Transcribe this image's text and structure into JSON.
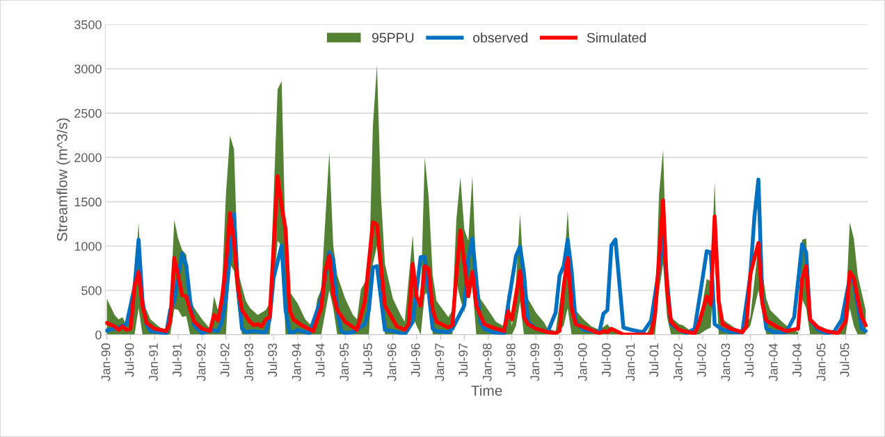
{
  "chart_data": {
    "type": "line",
    "xlabel": "Time",
    "ylabel": "Streamflow (m^3/s)",
    "ylim": [
      0,
      3500
    ],
    "yticks": [
      0,
      500,
      1000,
      1500,
      2000,
      2500,
      3000,
      3500
    ],
    "xlim": [
      "1989-12-20",
      "2005-12-20"
    ],
    "xticks": [
      {
        "value": "1990-01",
        "label": "Jan-90"
      },
      {
        "value": "1990-07",
        "label": "Jul-90"
      },
      {
        "value": "1991-01",
        "label": "Jan-91"
      },
      {
        "value": "1991-07",
        "label": "Jul-91"
      },
      {
        "value": "1992-01",
        "label": "Jan-92"
      },
      {
        "value": "1992-07",
        "label": "Jul-92"
      },
      {
        "value": "1993-01",
        "label": "Jan-93"
      },
      {
        "value": "1993-07",
        "label": "Jul-93"
      },
      {
        "value": "1994-01",
        "label": "Jan-94"
      },
      {
        "value": "1994-07",
        "label": "Jul-94"
      },
      {
        "value": "1995-01",
        "label": "Jan-95"
      },
      {
        "value": "1995-07",
        "label": "Jul-95"
      },
      {
        "value": "1996-01",
        "label": "Jan-96"
      },
      {
        "value": "1996-07",
        "label": "Jul-96"
      },
      {
        "value": "1997-01",
        "label": "Jan-97"
      },
      {
        "value": "1997-07",
        "label": "Jul-97"
      },
      {
        "value": "1998-01",
        "label": "Jan-98"
      },
      {
        "value": "1998-07",
        "label": "Jul-98"
      },
      {
        "value": "1999-01",
        "label": "Jan-99"
      },
      {
        "value": "1999-07",
        "label": "Jul-99"
      },
      {
        "value": "2000-01",
        "label": "Jan-00"
      },
      {
        "value": "2000-07",
        "label": "Jul-00"
      },
      {
        "value": "2001-01",
        "label": "Jan-01"
      },
      {
        "value": "2001-07",
        "label": "Jul-01"
      },
      {
        "value": "2002-01",
        "label": "Jan-02"
      },
      {
        "value": "2002-07",
        "label": "Jul-02"
      },
      {
        "value": "2003-01",
        "label": "Jan-03"
      },
      {
        "value": "2003-07",
        "label": "Jul-03"
      },
      {
        "value": "2004-01",
        "label": "Jan-04"
      },
      {
        "value": "2004-07",
        "label": "Jul-04"
      },
      {
        "value": "2005-01",
        "label": "Jan-05"
      },
      {
        "value": "2005-07",
        "label": "Jul-05"
      }
    ],
    "grid": "y",
    "legend": "top",
    "marker": "none",
    "line_style": "solid",
    "series": [
      {
        "name": "95PPU",
        "type": "area",
        "color": "#548235",
        "x": [
          "1990-01",
          "1990-03",
          "1990-04",
          "1990-05",
          "1990-06",
          "1990-08",
          "1990-09",
          "1990-10",
          "1990-11",
          "1990-12",
          "1991-02",
          "1991-04",
          "1991-05",
          "1991-06",
          "1991-07",
          "1991-08",
          "1991-09",
          "1991-10",
          "1991-11",
          "1992-01",
          "1992-03",
          "1992-04",
          "1992-05",
          "1992-06",
          "1992-07",
          "1992-08",
          "1992-09",
          "1992-10",
          "1992-11",
          "1992-12",
          "1993-01",
          "1993-03",
          "1993-05",
          "1993-06",
          "1993-08",
          "1993-09",
          "1993-10",
          "1993-11",
          "1994-01",
          "1994-03",
          "1994-05",
          "1994-06",
          "1994-07",
          "1994-09",
          "1994-10",
          "1994-11",
          "1995-01",
          "1995-03",
          "1995-04",
          "1995-05",
          "1995-07",
          "1995-08",
          "1995-09",
          "1995-10",
          "1995-11",
          "1996-01",
          "1996-03",
          "1996-04",
          "1996-06",
          "1996-07",
          "1996-08",
          "1996-09",
          "1996-10",
          "1996-11",
          "1996-12",
          "1997-03",
          "1997-04",
          "1997-05",
          "1997-06",
          "1997-07",
          "1997-08",
          "1997-09",
          "1997-10",
          "1997-11",
          "1998-01",
          "1998-03",
          "1998-05",
          "1998-06",
          "1998-07",
          "1998-08",
          "1998-09",
          "1998-10",
          "1998-11",
          "1999-01",
          "1999-03",
          "1999-04",
          "1999-06",
          "1999-08",
          "1999-09",
          "1999-10",
          "1999-11",
          "2000-01",
          "2000-03",
          "2000-05",
          "2000-07",
          "2000-08",
          "2000-11",
          "2001-05",
          "2001-07",
          "2001-08",
          "2001-09",
          "2001-10",
          "2001-11",
          "2002-01",
          "2002-02",
          "2002-04",
          "2002-06",
          "2002-08",
          "2002-09",
          "2002-10",
          "2002-11",
          "2002-12",
          "2003-03",
          "2003-05",
          "2003-07",
          "2003-09",
          "2003-11",
          "2003-12",
          "2004-03",
          "2004-05",
          "2004-07",
          "2004-08",
          "2004-09",
          "2004-10",
          "2004-12",
          "2005-02",
          "2005-05",
          "2005-07",
          "2005-08",
          "2005-09",
          "2005-10",
          "2005-12"
        ],
        "values": [
          null,
          null,
          null,
          null,
          null,
          null,
          null,
          null,
          null,
          null,
          null,
          null,
          null,
          null,
          null,
          null,
          null,
          null,
          null,
          null,
          null,
          null,
          null,
          null,
          null,
          null,
          null,
          null,
          null,
          null,
          null,
          null,
          null,
          null,
          null,
          null,
          null,
          null,
          null,
          null,
          null,
          null,
          null,
          null,
          null,
          null,
          null,
          null,
          null,
          null,
          null,
          null,
          null,
          null,
          null,
          null,
          null,
          null,
          null,
          null,
          null,
          null,
          null,
          null,
          null,
          null,
          null,
          null,
          null,
          null,
          null,
          null,
          null,
          null,
          null,
          null,
          null,
          null,
          null,
          null,
          null,
          null,
          null,
          null,
          null,
          null,
          null,
          null,
          null,
          null,
          null,
          null,
          null,
          null,
          null,
          null,
          null,
          null,
          null,
          null,
          null,
          null,
          null,
          null,
          null,
          null,
          null,
          null,
          null,
          null,
          null,
          null,
          null,
          null,
          null,
          null,
          null,
          null,
          null,
          null,
          null,
          null,
          null,
          null,
          null,
          null,
          null,
          null,
          null,
          null,
          null,
          null
        ],
        "upper": [
          407,
          224,
          172,
          198,
          107,
          564,
          1268,
          329,
          277,
          172,
          94,
          42,
          277,
          1295,
          1086,
          955,
          903,
          407,
          303,
          172,
          68,
          433,
          277,
          540,
          1582,
          2247,
          2091,
          720,
          540,
          381,
          303,
          224,
          277,
          355,
          2769,
          2861,
          1000,
          485,
          355,
          172,
          81,
          407,
          512,
          2064,
          1007,
          668,
          407,
          224,
          172,
          512,
          668,
          2365,
          3043,
          1582,
          799,
          407,
          224,
          146,
          1125,
          407,
          381,
          2000,
          1556,
          668,
          381,
          198,
          277,
          1295,
          1777,
          1190,
          1060,
          1790,
          668,
          407,
          277,
          146,
          94,
          485,
          94,
          590,
          1360,
          642,
          407,
          250,
          146,
          68,
          42,
          668,
          1399,
          668,
          277,
          172,
          94,
          55,
          120,
          60,
          20,
          10,
          250,
          1582,
          2091,
          600,
          198,
          120,
          107,
          42,
          94,
          629,
          603,
          1725,
          329,
          172,
          81,
          42,
          198,
          1007,
          407,
          277,
          146,
          68,
          29,
          1073,
          1086,
          146,
          107,
          68,
          16,
          277,
          1268,
          1086,
          668,
          277
        ],
        "lower": [
          0,
          0,
          0,
          0,
          0,
          0,
          300,
          0,
          0,
          0,
          0,
          0,
          0,
          290,
          280,
          200,
          210,
          0,
          0,
          0,
          0,
          0,
          0,
          0,
          0,
          800,
          720,
          300,
          0,
          0,
          0,
          0,
          0,
          0,
          1060,
          1000,
          0,
          0,
          0,
          0,
          0,
          0,
          0,
          500,
          300,
          0,
          0,
          0,
          0,
          0,
          0,
          800,
          1000,
          500,
          0,
          0,
          0,
          0,
          200,
          100,
          0,
          450,
          500,
          0,
          0,
          0,
          0,
          600,
          400,
          250,
          600,
          550,
          0,
          0,
          0,
          0,
          0,
          0,
          0,
          100,
          370,
          0,
          0,
          0,
          0,
          0,
          0,
          100,
          300,
          0,
          0,
          0,
          0,
          0,
          0,
          0,
          0,
          0,
          0,
          500,
          800,
          200,
          0,
          0,
          0,
          0,
          0,
          60,
          80,
          900,
          0,
          0,
          0,
          0,
          100,
          500,
          0,
          0,
          0,
          0,
          0,
          400,
          300,
          0,
          0,
          0,
          0,
          0,
          300,
          100,
          0,
          0
        ]
      },
      {
        "name": "observed",
        "color": "#0070c0",
        "x": [
          "1990-01",
          "1990-04",
          "1990-06",
          "1990-08",
          "1990-09",
          "1990-10",
          "1990-11",
          "1990-12",
          "1991-04",
          "1991-05",
          "1991-06",
          "1991-08",
          "1991-09",
          "1991-10",
          "1991-11",
          "1992-01",
          "1992-03",
          "1992-05",
          "1992-06",
          "1992-07",
          "1992-09",
          "1992-10",
          "1992-11",
          "1992-12",
          "1993-02",
          "1993-04",
          "1993-05",
          "1993-06",
          "1993-07",
          "1993-09",
          "1993-10",
          "1993-11",
          "1993-12",
          "1994-01",
          "1994-04",
          "1994-05",
          "1994-07",
          "1994-09",
          "1994-10",
          "1994-11",
          "1994-12",
          "1995-01",
          "1995-03",
          "1995-06",
          "1995-07",
          "1995-08",
          "1995-09",
          "1995-11",
          "1996-01",
          "1996-04",
          "1996-06",
          "1996-08",
          "1996-09",
          "1996-11",
          "1996-12",
          "1997-03",
          "1997-04",
          "1997-07",
          "1997-08",
          "1997-09",
          "1997-11",
          "1997-12",
          "1998-02",
          "1998-05",
          "1998-06",
          "1998-08",
          "1998-09",
          "1998-10",
          "1998-11",
          "1999-01",
          "1999-04",
          "1999-06",
          "1999-07",
          "1999-08",
          "1999-09",
          "1999-10",
          "1999-11",
          "2000-01",
          "2000-05",
          "2000-06",
          "2000-07",
          "2000-08",
          "2000-09",
          "2000-11",
          "2001-01",
          "2001-04",
          "2001-06",
          "2001-08",
          "2001-09",
          "2001-11",
          "2002-01",
          "2002-03",
          "2002-05",
          "2002-07",
          "2002-08",
          "2002-09",
          "2002-10",
          "2002-12",
          "2003-02",
          "2003-05",
          "2003-07",
          "2003-08",
          "2003-09",
          "2003-10",
          "2003-11",
          "2004-01",
          "2004-04",
          "2004-06",
          "2004-08",
          "2004-09",
          "2004-10",
          "2004-12",
          "2005-02",
          "2005-04",
          "2005-06",
          "2005-08",
          "2005-09",
          "2005-11",
          "2005-12"
        ],
        "values": [
          47,
          80,
          120,
          540,
          1073,
          380,
          120,
          42,
          16,
          277,
          380,
          916,
          785,
          380,
          107,
          16,
          55,
          42,
          146,
          407,
          1360,
          540,
          68,
          29,
          42,
          29,
          29,
          172,
          640,
          1007,
          277,
          30,
          29,
          55,
          16,
          146,
          407,
          930,
          850,
          277,
          42,
          16,
          29,
          120,
          277,
          760,
          773,
          55,
          42,
          3,
          146,
          877,
          877,
          68,
          42,
          29,
          68,
          329,
          850,
          1086,
          146,
          68,
          29,
          16,
          329,
          890,
          994,
          694,
          146,
          68,
          29,
          250,
          668,
          773,
          1073,
          720,
          146,
          55,
          29,
          238,
          277,
          1007,
          1073,
          80,
          55,
          29,
          159,
          746,
          1100,
          120,
          55,
          16,
          68,
          642,
          942,
          929,
          120,
          55,
          29,
          29,
          668,
          1320,
          1751,
          407,
          68,
          29,
          29,
          198,
          1020,
          929,
          172,
          55,
          16,
          29,
          172,
          642,
          590,
          68,
          42
        ]
      },
      {
        "name": "Simulated",
        "color": "#ff0000",
        "x": [
          "1990-01",
          "1990-03",
          "1990-04",
          "1990-05",
          "1990-06",
          "1990-07",
          "1990-08",
          "1990-09",
          "1990-10",
          "1990-11",
          "1991-01",
          "1991-04",
          "1991-05",
          "1991-06",
          "1991-07",
          "1991-08",
          "1991-09",
          "1991-10",
          "1991-11",
          "1992-01",
          "1992-03",
          "1992-04",
          "1992-05",
          "1992-06",
          "1992-07",
          "1992-08",
          "1992-09",
          "1992-10",
          "1992-11",
          "1993-01",
          "1993-02",
          "1993-03",
          "1993-04",
          "1993-05",
          "1993-06",
          "1993-08",
          "1993-09",
          "1993-10",
          "1993-11",
          "1993-12",
          "1994-02",
          "1994-05",
          "1994-07",
          "1994-08",
          "1994-09",
          "1994-10",
          "1994-11",
          "1995-01",
          "1995-04",
          "1995-06",
          "1995-08",
          "1995-09",
          "1995-11",
          "1996-01",
          "1996-02",
          "1996-04",
          "1996-05",
          "1996-06",
          "1996-07",
          "1996-08",
          "1996-09",
          "1996-10",
          "1996-11",
          "1996-12",
          "1997-03",
          "1997-04",
          "1997-05",
          "1997-06",
          "1997-08",
          "1997-09",
          "1997-10",
          "1997-12",
          "1998-02",
          "1998-05",
          "1998-06",
          "1998-07",
          "1998-09",
          "1998-10",
          "1998-11",
          "1999-01",
          "1999-04",
          "1999-06",
          "1999-07",
          "1999-08",
          "1999-09",
          "1999-10",
          "1999-11",
          "2000-02",
          "2000-05",
          "2000-06",
          "2000-07",
          "2000-08",
          "2000-11",
          "2001-06",
          "2001-07",
          "2001-09",
          "2001-10",
          "2001-11",
          "2002-01",
          "2002-02",
          "2002-05",
          "2002-06",
          "2002-08",
          "2002-09",
          "2002-10",
          "2002-11",
          "2002-12",
          "2003-02",
          "2003-05",
          "2003-06",
          "2003-07",
          "2003-09",
          "2003-10",
          "2003-11",
          "2004-02",
          "2004-04",
          "2004-07",
          "2004-08",
          "2004-09",
          "2004-10",
          "2004-12",
          "2005-02",
          "2005-05",
          "2005-07",
          "2005-08",
          "2005-09",
          "2005-10",
          "2005-11",
          "2005-12"
        ],
        "values": [
          133,
          94,
          55,
          94,
          55,
          68,
          540,
          707,
          329,
          133,
          68,
          42,
          146,
          864,
          668,
          446,
          433,
          277,
          146,
          68,
          42,
          224,
          159,
          407,
          799,
          1373,
          1060,
          540,
          277,
          146,
          107,
          120,
          94,
          172,
          198,
          1790,
          1451,
          1190,
          277,
          172,
          107,
          42,
          303,
          720,
          890,
          460,
          277,
          146,
          55,
          381,
          1268,
          1242,
          329,
          172,
          94,
          55,
          120,
          799,
          433,
          329,
          773,
          746,
          277,
          146,
          81,
          107,
          668,
          1177,
          433,
          707,
          329,
          120,
          81,
          42,
          264,
          172,
          720,
          198,
          120,
          68,
          29,
          16,
          42,
          540,
          864,
          303,
          120,
          68,
          16,
          42,
          29,
          68,
          3,
          3,
          224,
          1516,
          512,
          146,
          55,
          42,
          16,
          120,
          433,
          342,
          1334,
          381,
          120,
          68,
          29,
          94,
          681,
          1034,
          355,
          159,
          81,
          42,
          68,
          629,
          773,
          172,
          81,
          42,
          16,
          146,
          707,
          642,
          407,
          198,
          107
        ]
      }
    ]
  }
}
